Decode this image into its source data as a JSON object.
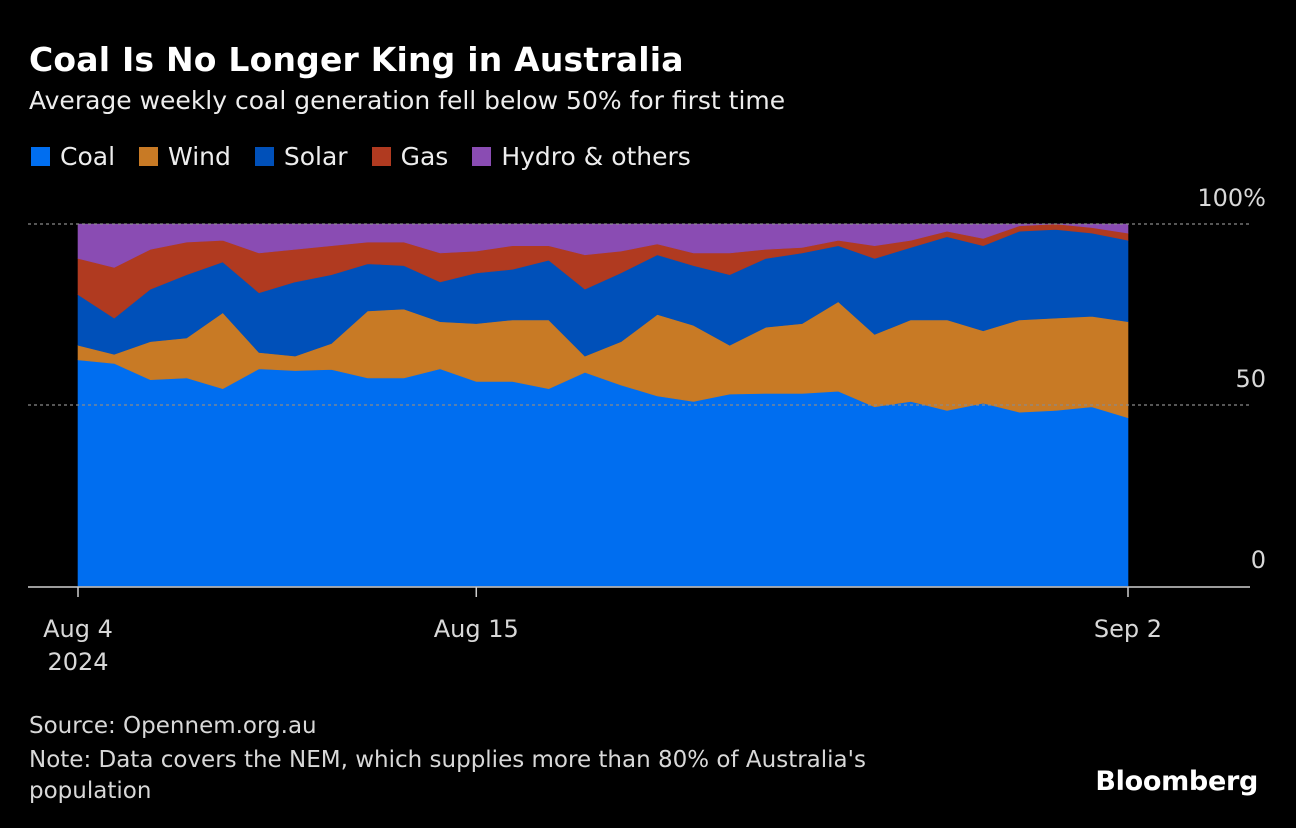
{
  "title": "Coal Is No Longer King in Australia",
  "subtitle": "Average weekly coal generation fell below 50% for first time",
  "source": "Source: Opennem.org.au",
  "note": "Note: Data covers the NEM, which supplies more than 80% of Australia's population",
  "brand": "Bloomberg",
  "chart_data": {
    "type": "area",
    "stacked": true,
    "x_start": "2024-08-04",
    "x_end": "2024-09-02",
    "x_labels": [
      {
        "day": 0,
        "lines": [
          "Aug 4",
          "2024"
        ]
      },
      {
        "day": 11,
        "lines": [
          "Aug 15"
        ]
      },
      {
        "day": 29,
        "lines": [
          "Sep 2"
        ]
      }
    ],
    "ylim": [
      0,
      100
    ],
    "y_ticks": [
      {
        "value": 100,
        "label": "100%"
      },
      {
        "value": 50,
        "label": "50"
      },
      {
        "value": 0,
        "label": "0"
      }
    ],
    "gridlines": [
      50,
      100
    ],
    "x_days": [
      0,
      1,
      2,
      3,
      4,
      5,
      6,
      7,
      8,
      9,
      10,
      11,
      12,
      13,
      14,
      15,
      16,
      17,
      18,
      19,
      20,
      21,
      22,
      23,
      24,
      25,
      26,
      27,
      28,
      29
    ],
    "series": [
      {
        "name": "Coal",
        "color": "#006ef0",
        "values": [
          62.5,
          61.5,
          57.0,
          57.5,
          54.5,
          60.0,
          59.5,
          59.8,
          57.5,
          57.5,
          60.0,
          56.5,
          56.5,
          54.5,
          59.0,
          55.5,
          52.5,
          51.0,
          53.0,
          53.2,
          53.2,
          53.8,
          49.5,
          51.0,
          48.5,
          50.5,
          48.0,
          48.5,
          49.5,
          46.5
        ]
      },
      {
        "name": "Wind",
        "color": "#c87a25",
        "values": [
          4.0,
          2.5,
          10.5,
          11.0,
          21.0,
          4.5,
          4.0,
          7.2,
          18.5,
          19.0,
          13.0,
          16.0,
          17.0,
          19.0,
          4.5,
          12.0,
          22.5,
          21.0,
          13.5,
          18.3,
          19.3,
          24.7,
          20.0,
          22.5,
          25.0,
          20.0,
          25.5,
          25.5,
          25.0,
          26.5
        ]
      },
      {
        "name": "Solar",
        "color": "#0050b9",
        "values": [
          14.0,
          10.0,
          14.5,
          17.5,
          14.0,
          16.5,
          20.5,
          19.0,
          13.0,
          12.0,
          11.0,
          14.0,
          14.0,
          16.5,
          18.5,
          19.0,
          16.5,
          16.5,
          19.5,
          19.0,
          19.5,
          15.5,
          21.0,
          20.0,
          23.0,
          23.5,
          24.5,
          24.5,
          23.0,
          22.5
        ]
      },
      {
        "name": "Gas",
        "color": "#b03a20",
        "values": [
          10.0,
          14.0,
          11.0,
          9.0,
          6.0,
          11.0,
          9.0,
          8.0,
          6.0,
          6.5,
          8.0,
          6.0,
          6.5,
          4.0,
          9.5,
          6.0,
          3.0,
          3.5,
          6.0,
          2.5,
          1.5,
          1.5,
          3.5,
          2.0,
          1.5,
          2.0,
          1.5,
          1.5,
          1.5,
          2.0
        ]
      },
      {
        "name": "Hydro & others",
        "color": "#8a4cb3",
        "values": [
          9.5,
          12.0,
          7.0,
          5.0,
          4.5,
          8.0,
          7.0,
          6.0,
          5.0,
          5.0,
          8.0,
          7.5,
          6.0,
          6.0,
          8.5,
          7.5,
          5.5,
          8.0,
          8.0,
          7.0,
          6.5,
          4.5,
          6.0,
          4.5,
          2.0,
          4.0,
          0.5,
          0.0,
          1.0,
          2.5
        ]
      }
    ]
  }
}
